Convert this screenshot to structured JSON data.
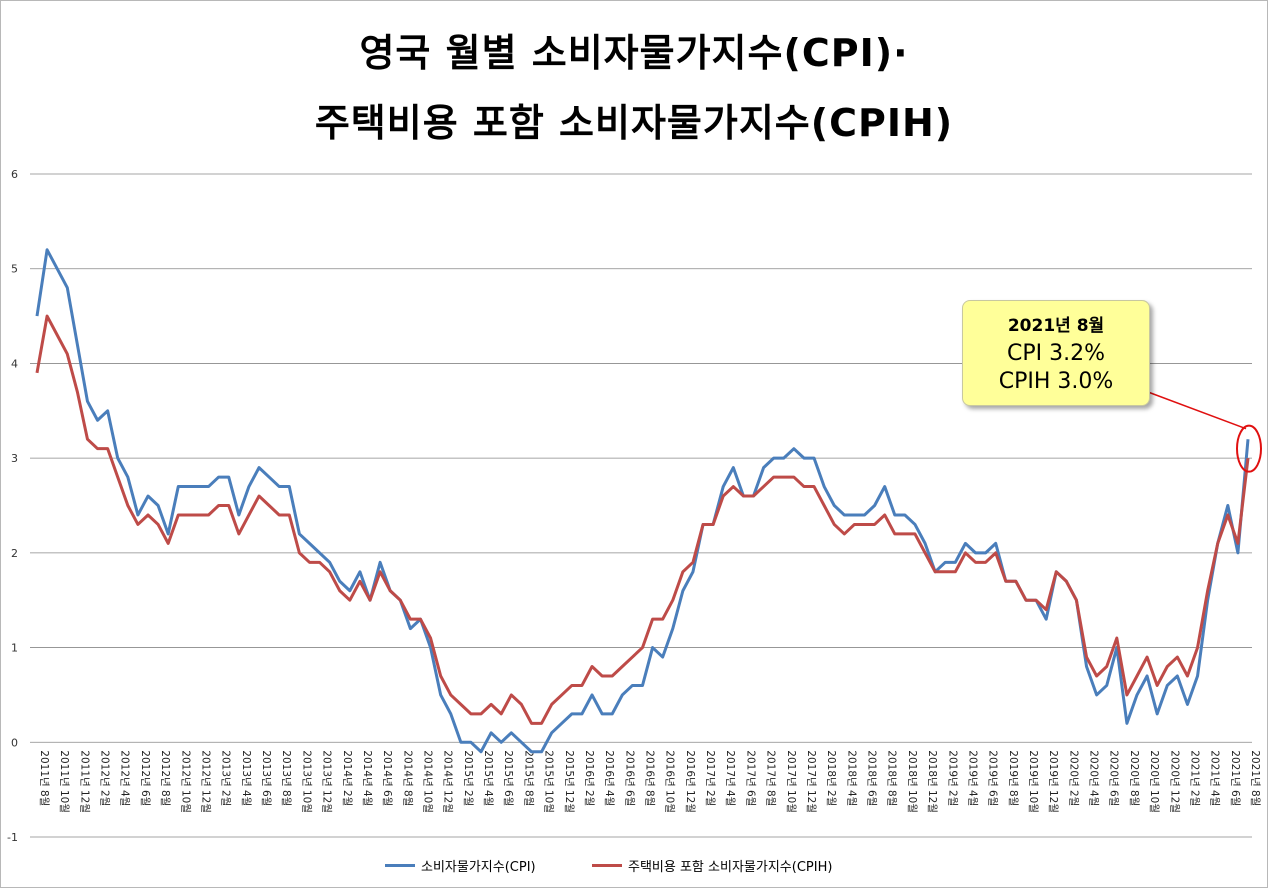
{
  "title_line1": "영국 월별 소비자물가지수(CPI)·",
  "title_line2": "주택비용 포함 소비자물가지수(CPIH)",
  "callout": {
    "date": "2021년 8월",
    "cpi": "CPI 3.2%",
    "cpih": "CPIH 3.0%"
  },
  "colors": {
    "cpi": "#4a7ebb",
    "cpih": "#be4b48",
    "grid": "#888888",
    "highlight": "#e01010"
  },
  "chart_data": {
    "type": "line",
    "ylim": [
      -1,
      6
    ],
    "yticks": [
      "-1",
      "0",
      "1",
      "2",
      "3",
      "4",
      "5",
      "6"
    ],
    "x": [
      "2011년 8월",
      "2011년 9월",
      "2011년 10월",
      "2011년 11월",
      "2011년 12월",
      "2012년 1월",
      "2012년 2월",
      "2012년 3월",
      "2012년 4월",
      "2012년 5월",
      "2012년 6월",
      "2012년 7월",
      "2012년 8월",
      "2012년 9월",
      "2012년 10월",
      "2012년 11월",
      "2012년 12월",
      "2013년 1월",
      "2013년 2월",
      "2013년 3월",
      "2013년 4월",
      "2013년 5월",
      "2013년 6월",
      "2013년 7월",
      "2013년 8월",
      "2013년 9월",
      "2013년 10월",
      "2013년 11월",
      "2013년 12월",
      "2014년 1월",
      "2014년 2월",
      "2014년 3월",
      "2014년 4월",
      "2014년 5월",
      "2014년 6월",
      "2014년 7월",
      "2014년 8월",
      "2014년 9월",
      "2014년 10월",
      "2014년 11월",
      "2014년 12월",
      "2015년 1월",
      "2015년 2월",
      "2015년 3월",
      "2015년 4월",
      "2015년 5월",
      "2015년 6월",
      "2015년 7월",
      "2015년 8월",
      "2015년 9월",
      "2015년 10월",
      "2015년 11월",
      "2015년 12월",
      "2016년 1월",
      "2016년 2월",
      "2016년 3월",
      "2016년 4월",
      "2016년 5월",
      "2016년 6월",
      "2016년 7월",
      "2016년 8월",
      "2016년 9월",
      "2016년 10월",
      "2016년 11월",
      "2016년 12월",
      "2017년 1월",
      "2017년 2월",
      "2017년 3월",
      "2017년 4월",
      "2017년 5월",
      "2017년 6월",
      "2017년 7월",
      "2017년 8월",
      "2017년 9월",
      "2017년 10월",
      "2017년 11월",
      "2017년 12월",
      "2018년 1월",
      "2018년 2월",
      "2018년 3월",
      "2018년 4월",
      "2018년 5월",
      "2018년 6월",
      "2018년 7월",
      "2018년 8월",
      "2018년 9월",
      "2018년 10월",
      "2018년 11월",
      "2018년 12월",
      "2019년 1월",
      "2019년 2월",
      "2019년 3월",
      "2019년 4월",
      "2019년 5월",
      "2019년 6월",
      "2019년 7월",
      "2019년 8월",
      "2019년 9월",
      "2019년 10월",
      "2019년 11월",
      "2019년 12월",
      "2020년 1월",
      "2020년 2월",
      "2020년 3월",
      "2020년 4월",
      "2020년 5월",
      "2020년 6월",
      "2020년 7월",
      "2020년 8월",
      "2020년 9월",
      "2020년 10월",
      "2020년 11월",
      "2020년 12월",
      "2021년 1월",
      "2021년 2월",
      "2021년 3월",
      "2021년 4월",
      "2021년 5월",
      "2021년 6월",
      "2021년 7월",
      "2021년 8월"
    ],
    "series": [
      {
        "name": "소비자물가지수(CPI)",
        "color": "#4a7ebb",
        "values": [
          4.5,
          5.2,
          5.0,
          4.8,
          4.2,
          3.6,
          3.4,
          3.5,
          3.0,
          2.8,
          2.4,
          2.6,
          2.5,
          2.2,
          2.7,
          2.7,
          2.7,
          2.7,
          2.8,
          2.8,
          2.4,
          2.7,
          2.9,
          2.8,
          2.7,
          2.7,
          2.2,
          2.1,
          2.0,
          1.9,
          1.7,
          1.6,
          1.8,
          1.5,
          1.9,
          1.6,
          1.5,
          1.2,
          1.3,
          1.0,
          0.5,
          0.3,
          0.0,
          0.0,
          -0.1,
          0.1,
          0.0,
          0.1,
          0.0,
          -0.1,
          -0.1,
          0.1,
          0.2,
          0.3,
          0.3,
          0.5,
          0.3,
          0.3,
          0.5,
          0.6,
          0.6,
          1.0,
          0.9,
          1.2,
          1.6,
          1.8,
          2.3,
          2.3,
          2.7,
          2.9,
          2.6,
          2.6,
          2.9,
          3.0,
          3.0,
          3.1,
          3.0,
          3.0,
          2.7,
          2.5,
          2.4,
          2.4,
          2.4,
          2.5,
          2.7,
          2.4,
          2.4,
          2.3,
          2.1,
          1.8,
          1.9,
          1.9,
          2.1,
          2.0,
          2.0,
          2.1,
          1.7,
          1.7,
          1.5,
          1.5,
          1.3,
          1.8,
          1.7,
          1.5,
          0.8,
          0.5,
          0.6,
          1.0,
          0.2,
          0.5,
          0.7,
          0.3,
          0.6,
          0.7,
          0.4,
          0.7,
          1.5,
          2.1,
          2.5,
          2.0,
          3.2
        ]
      },
      {
        "name": "주택비용 포함 소비자물가지수(CPIH)",
        "color": "#be4b48",
        "values": [
          3.9,
          4.5,
          4.3,
          4.1,
          3.7,
          3.2,
          3.1,
          3.1,
          2.8,
          2.5,
          2.3,
          2.4,
          2.3,
          2.1,
          2.4,
          2.4,
          2.4,
          2.4,
          2.5,
          2.5,
          2.2,
          2.4,
          2.6,
          2.5,
          2.4,
          2.4,
          2.0,
          1.9,
          1.9,
          1.8,
          1.6,
          1.5,
          1.7,
          1.5,
          1.8,
          1.6,
          1.5,
          1.3,
          1.3,
          1.1,
          0.7,
          0.5,
          0.4,
          0.3,
          0.3,
          0.4,
          0.3,
          0.5,
          0.4,
          0.2,
          0.2,
          0.4,
          0.5,
          0.6,
          0.6,
          0.8,
          0.7,
          0.7,
          0.8,
          0.9,
          1.0,
          1.3,
          1.3,
          1.5,
          1.8,
          1.9,
          2.3,
          2.3,
          2.6,
          2.7,
          2.6,
          2.6,
          2.7,
          2.8,
          2.8,
          2.8,
          2.7,
          2.7,
          2.5,
          2.3,
          2.2,
          2.3,
          2.3,
          2.3,
          2.4,
          2.2,
          2.2,
          2.2,
          2.0,
          1.8,
          1.8,
          1.8,
          2.0,
          1.9,
          1.9,
          2.0,
          1.7,
          1.7,
          1.5,
          1.5,
          1.4,
          1.8,
          1.7,
          1.5,
          0.9,
          0.7,
          0.8,
          1.1,
          0.5,
          0.7,
          0.9,
          0.6,
          0.8,
          0.9,
          0.7,
          1.0,
          1.6,
          2.1,
          2.4,
          2.1,
          3.0
        ]
      }
    ]
  }
}
